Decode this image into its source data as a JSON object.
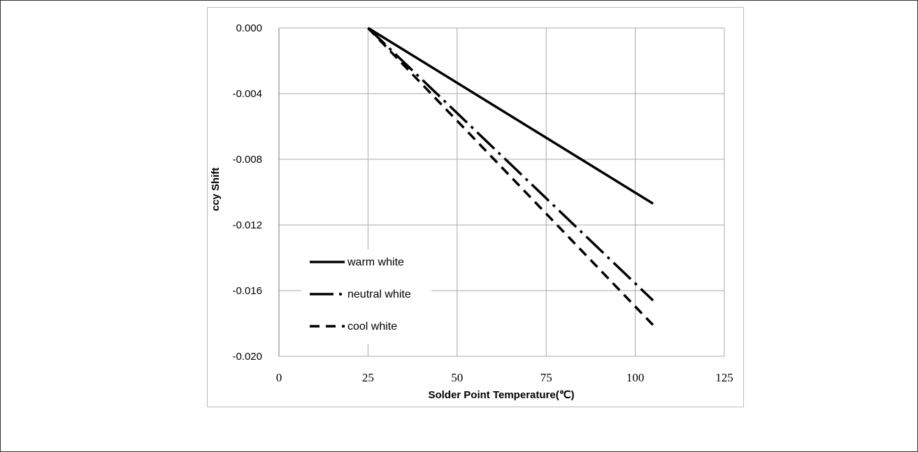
{
  "chart_data": {
    "type": "line",
    "title": "",
    "xlabel": "Solder Point Temperature(℃)",
    "ylabel": "ccy Shift",
    "xlim": [
      0,
      125
    ],
    "ylim": [
      -0.02,
      0.0
    ],
    "x_ticks": [
      0,
      25,
      50,
      75,
      100,
      125
    ],
    "x_tick_labels": [
      "0",
      "25",
      "50",
      "75",
      "100",
      "125"
    ],
    "y_ticks": [
      0.0,
      -0.004,
      -0.008,
      -0.012,
      -0.016,
      -0.02
    ],
    "y_tick_labels": [
      "0.000",
      "-0.004",
      "-0.008",
      "-0.012",
      "-0.016",
      "-0.020"
    ],
    "grid": true,
    "legend_position": "bottom-left",
    "series": [
      {
        "name": "warm white",
        "style": "solid",
        "color": "#000000",
        "x": [
          25,
          105
        ],
        "y": [
          0.0,
          -0.0107
        ]
      },
      {
        "name": "neutral white",
        "style": "long-dash-dot",
        "color": "#000000",
        "x": [
          25,
          105
        ],
        "y": [
          0.0,
          -0.0166
        ]
      },
      {
        "name": "cool white",
        "style": "dash",
        "color": "#000000",
        "x": [
          25,
          105
        ],
        "y": [
          0.0,
          -0.0181
        ]
      }
    ]
  }
}
